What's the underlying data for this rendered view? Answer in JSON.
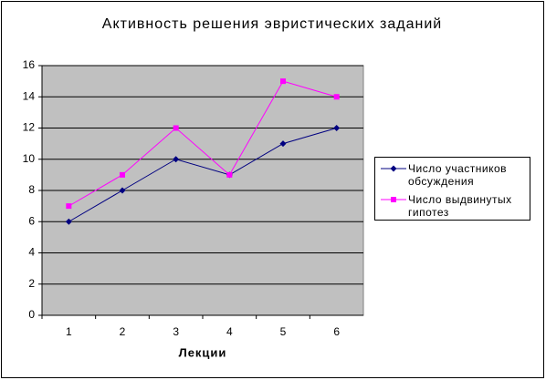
{
  "chart_data": {
    "type": "line",
    "title": "Активность решения эвристических заданий",
    "x_label": "Лекции",
    "categories": [
      1,
      2,
      3,
      4,
      5,
      6
    ],
    "series": [
      {
        "name": "Число участников обсуждения",
        "color": "#000080",
        "marker": "diamond",
        "values": [
          6,
          8,
          10,
          9,
          11,
          12
        ]
      },
      {
        "name": "Число выдвинутых гипотез",
        "color": "#ff00ff",
        "marker": "square",
        "values": [
          7,
          9,
          12,
          9,
          15,
          14
        ]
      }
    ],
    "ylim": [
      0,
      16
    ],
    "yticks": [
      0,
      2,
      4,
      6,
      8,
      10,
      12,
      14,
      16
    ],
    "grid": true,
    "legend": "right"
  }
}
